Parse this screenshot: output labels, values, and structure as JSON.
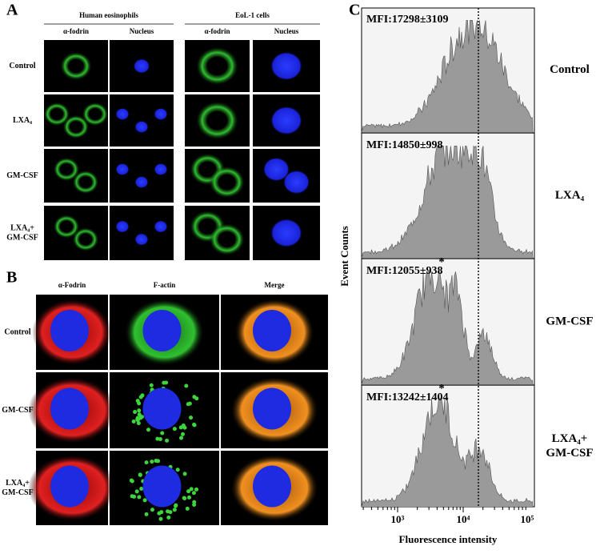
{
  "panel_a": {
    "label": "A",
    "groups": [
      {
        "title": "Human eosinophils",
        "columns": [
          "α-fodrin",
          "Nucleus"
        ]
      },
      {
        "title": "EoL-1 cells",
        "columns": [
          "α-fodrin",
          "Nucleus"
        ]
      }
    ],
    "rows": [
      "Control",
      "LXA₄",
      "GM-CSF",
      "LXA₄+",
      "GM-CSF"
    ]
  },
  "panel_b": {
    "label": "B",
    "columns": [
      "α-Fodrin",
      "F-actin",
      "Merge"
    ],
    "rows": [
      "Control",
      "GM-CSF",
      "LXA₄+",
      "GM-CSF"
    ]
  },
  "panel_c": {
    "label": "C",
    "y_label": "Event Counts",
    "x_label": "Fluorescence intensity",
    "x_ticks": [
      "10³",
      "10⁴",
      "10⁵"
    ],
    "histograms": [
      {
        "mfi": "MFI:17298±3109",
        "condition": "Control"
      },
      {
        "mfi": "MFI:14850±998",
        "condition": "LXA₄"
      },
      {
        "mfi": "MFI:12055±938",
        "condition": "GM-CSF",
        "significance": "*"
      },
      {
        "mfi": "MFI:13242±1404",
        "condition": "LXA₄+",
        "condition_line2": "GM-CSF",
        "significance": "*"
      }
    ]
  }
}
